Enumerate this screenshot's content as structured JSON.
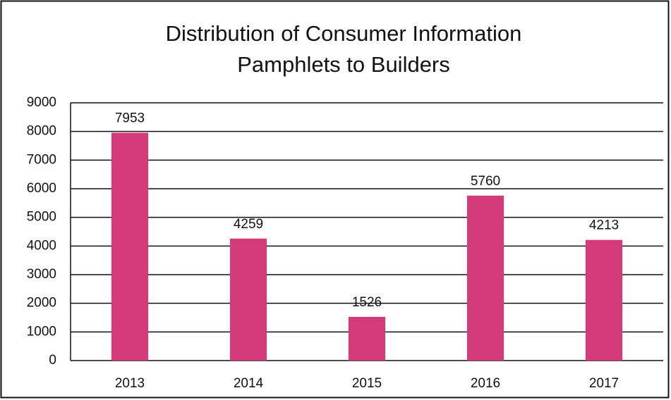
{
  "chart_data": {
    "type": "bar",
    "title": "Distribution of Consumer Information Pamphlets to Builders",
    "categories": [
      "2013",
      "2014",
      "2015",
      "2016",
      "2017"
    ],
    "values": [
      7953,
      4259,
      1526,
      5760,
      4213
    ],
    "color": "#d33a78",
    "ylim": [
      0,
      9000
    ],
    "yticks": [
      0,
      1000,
      2000,
      3000,
      4000,
      5000,
      6000,
      7000,
      8000,
      9000
    ],
    "grid": true
  }
}
